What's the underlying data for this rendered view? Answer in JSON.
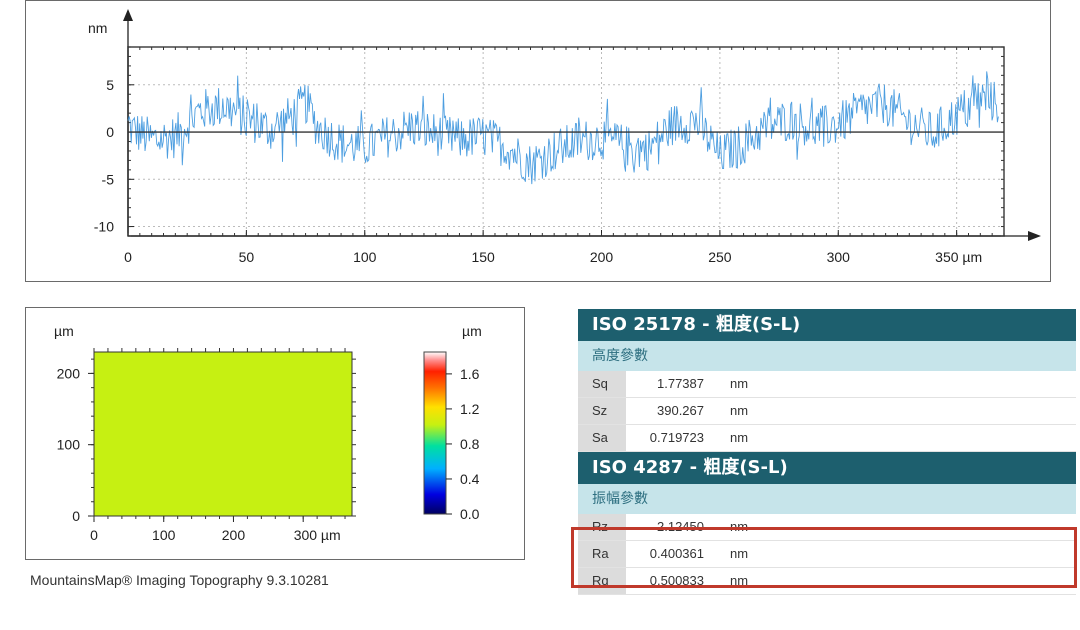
{
  "chart_data": [
    {
      "type": "line",
      "xunit": "µm",
      "yunit": "nm",
      "xlim": [
        0,
        370
      ],
      "ylim": [
        -11,
        9
      ],
      "xticks": [
        0,
        50,
        100,
        150,
        200,
        250,
        300,
        350
      ],
      "xtick_labels": [
        "0",
        "50",
        "100",
        "150",
        "200",
        "250",
        "300",
        "350 µm"
      ],
      "yticks": [
        5,
        0,
        -5,
        -10
      ],
      "ytick_labels": [
        "5",
        "0",
        "-5",
        "-10"
      ],
      "grid": true,
      "color": "#3a93dd",
      "series": [
        {
          "x": [
            0,
            10,
            20,
            30,
            40,
            50,
            60,
            70,
            75,
            80,
            90,
            100,
            110,
            120,
            130,
            140,
            150,
            160,
            170,
            180,
            190,
            200,
            210,
            220,
            230,
            240,
            250,
            260,
            270,
            280,
            290,
            300,
            310,
            320,
            330,
            340,
            350,
            360,
            368
          ],
          "y": [
            0.5,
            -0.8,
            -0.5,
            2.2,
            2.8,
            1.5,
            0.2,
            1.8,
            3.2,
            0.5,
            -1.2,
            -1.6,
            -0.4,
            0.6,
            -0.2,
            -0.8,
            -0.4,
            -1.6,
            -3.4,
            -2.0,
            -1.0,
            -0.6,
            -1.5,
            -1.8,
            0.8,
            1.2,
            -2.5,
            -1.2,
            0.6,
            1.4,
            0.4,
            0.8,
            2.4,
            3.0,
            1.0,
            -0.2,
            1.8,
            3.6,
            3.0
          ]
        }
      ]
    },
    {
      "type": "heatmap",
      "xunit": "µm",
      "yunit": "µm",
      "xlim": [
        0,
        370
      ],
      "ylim": [
        0,
        230
      ],
      "xticks": [
        0,
        100,
        200,
        300
      ],
      "xtick_labels": [
        "0",
        "100",
        "200",
        "300 µm"
      ],
      "yticks": [
        0,
        100,
        200
      ],
      "ytick_labels": [
        "0",
        "100",
        "200"
      ],
      "fill_color": "#c6f012",
      "colorbar": {
        "unit": "µm",
        "range": [
          0,
          1.85
        ],
        "ticks": [
          1.6,
          1.2,
          0.8,
          0.4,
          0.0
        ],
        "tick_labels": [
          "1.6",
          "1.2",
          "0.8",
          "0.4",
          "0.0"
        ]
      }
    }
  ],
  "table": {
    "section1": {
      "title": "ISO 25178 - 粗度(S-L)",
      "subtitle": "高度參數",
      "rows": [
        {
          "name": "Sq",
          "value": "1.77387",
          "unit": "nm"
        },
        {
          "name": "Sz",
          "value": "390.267",
          "unit": "nm"
        },
        {
          "name": "Sa",
          "value": "0.719723",
          "unit": "nm"
        }
      ]
    },
    "section2": {
      "title": "ISO 4287 - 粗度(S-L)",
      "subtitle": "振幅參數",
      "rows": [
        {
          "name": "Rz",
          "value": "2.12450",
          "unit": "nm"
        },
        {
          "name": "Ra",
          "value": "0.400361",
          "unit": "nm"
        },
        {
          "name": "Rq",
          "value": "0.500833",
          "unit": "nm"
        }
      ]
    }
  },
  "footer": "MountainsMap® Imaging Topography 9.3.10281",
  "colors": {
    "header": "#1d5f6e",
    "subheader": "#c6e4ea",
    "highlight": "#c0392b",
    "profile": "#3a93dd"
  }
}
